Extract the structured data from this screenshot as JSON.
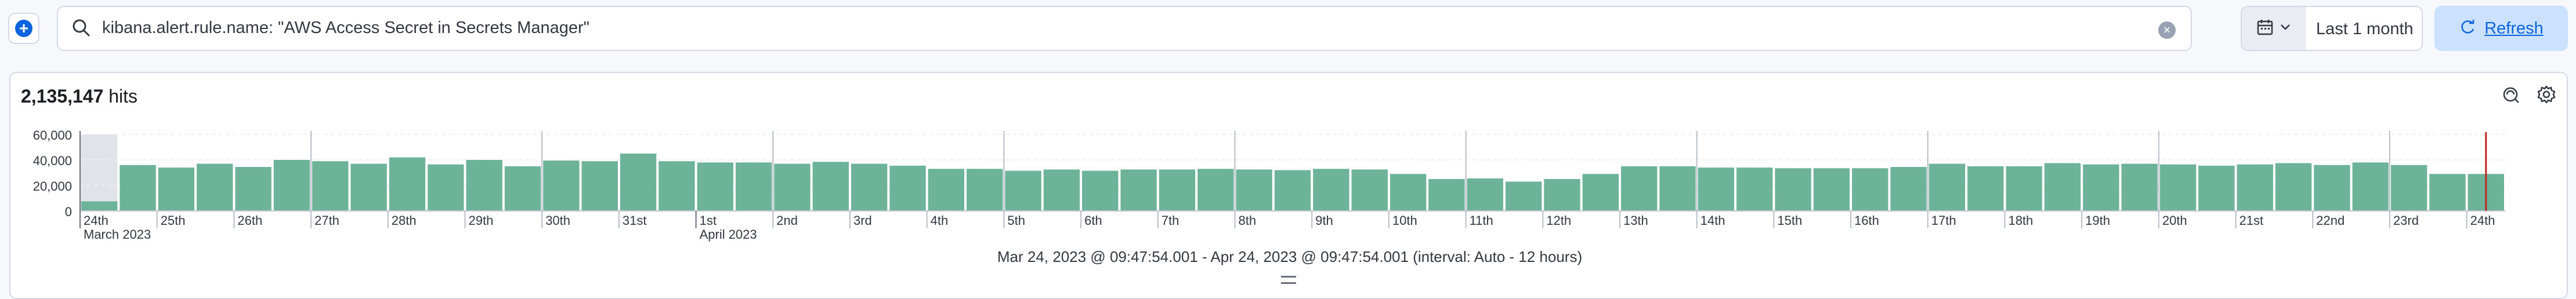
{
  "query": {
    "text": "kibana.alert.rule.name: \"AWS Access Secret in Secrets Manager\""
  },
  "icons": {
    "add": "plus-circle-icon",
    "search": "search-icon",
    "clear": "clear-icon",
    "calendar": "calendar-icon",
    "chevron": "chevron-down-icon",
    "refresh": "refresh-icon",
    "inspect": "inspect-icon",
    "settings": "gear-icon"
  },
  "date_picker": {
    "range_label": "Last 1 month"
  },
  "refresh": {
    "label": "Refresh"
  },
  "hits": {
    "count": "2,135,147",
    "label": "hits"
  },
  "interval_text": "Mar 24, 2023 @ 09:47:54.001 - Apr 24, 2023 @ 09:47:54.001 (interval: Auto - 12 hours)",
  "colors": {
    "bar": "#6db39a",
    "accent": "#0b64dd",
    "out_of_range": "#e0e3e8",
    "current_time_marker": "#bd271e"
  },
  "chart_data": {
    "type": "bar",
    "ylim": [
      0,
      60000
    ],
    "y_ticks": [
      "60,000",
      "40,000",
      "20,000",
      "0"
    ],
    "y_tick_values": [
      60000,
      40000,
      20000,
      0
    ],
    "x_ticks": [
      {
        "label": "24th",
        "sub": "March 2023",
        "index": 0
      },
      {
        "label": "25th",
        "index": 2
      },
      {
        "label": "26th",
        "index": 4
      },
      {
        "label": "27th",
        "index": 6
      },
      {
        "label": "28th",
        "index": 8
      },
      {
        "label": "29th",
        "index": 10
      },
      {
        "label": "30th",
        "index": 12
      },
      {
        "label": "31st",
        "index": 14
      },
      {
        "label": "1st",
        "sub": "April 2023",
        "index": 16
      },
      {
        "label": "2nd",
        "index": 18
      },
      {
        "label": "3rd",
        "index": 20
      },
      {
        "label": "4th",
        "index": 22
      },
      {
        "label": "5th",
        "index": 24
      },
      {
        "label": "6th",
        "index": 26
      },
      {
        "label": "7th",
        "index": 28
      },
      {
        "label": "8th",
        "index": 30
      },
      {
        "label": "9th",
        "index": 32
      },
      {
        "label": "10th",
        "index": 34
      },
      {
        "label": "11th",
        "index": 36
      },
      {
        "label": "12th",
        "index": 38
      },
      {
        "label": "13th",
        "index": 40
      },
      {
        "label": "14th",
        "index": 42
      },
      {
        "label": "15th",
        "index": 44
      },
      {
        "label": "16th",
        "index": 46
      },
      {
        "label": "17th",
        "index": 48
      },
      {
        "label": "18th",
        "index": 50
      },
      {
        "label": "19th",
        "index": 52
      },
      {
        "label": "20th",
        "index": 54
      },
      {
        "label": "21st",
        "index": 56
      },
      {
        "label": "22nd",
        "index": 58
      },
      {
        "label": "23rd",
        "index": 60
      },
      {
        "label": "24th",
        "index": 62
      }
    ],
    "values": [
      7500,
      36000,
      34000,
      37000,
      34500,
      40000,
      39000,
      37000,
      42000,
      36500,
      40000,
      35000,
      39500,
      39000,
      45000,
      39000,
      38000,
      38000,
      37000,
      38500,
      37000,
      35500,
      33000,
      33000,
      31500,
      32500,
      31500,
      32500,
      32500,
      33000,
      32500,
      32000,
      33000,
      32500,
      29000,
      25000,
      25500,
      23000,
      25000,
      29000,
      35000,
      35000,
      34000,
      34000,
      33500,
      33500,
      33500,
      34500,
      37000,
      35000,
      35000,
      37500,
      36500,
      37000,
      36500,
      35500,
      36500,
      37500,
      36000,
      38000,
      36000,
      29000,
      29000
    ]
  }
}
